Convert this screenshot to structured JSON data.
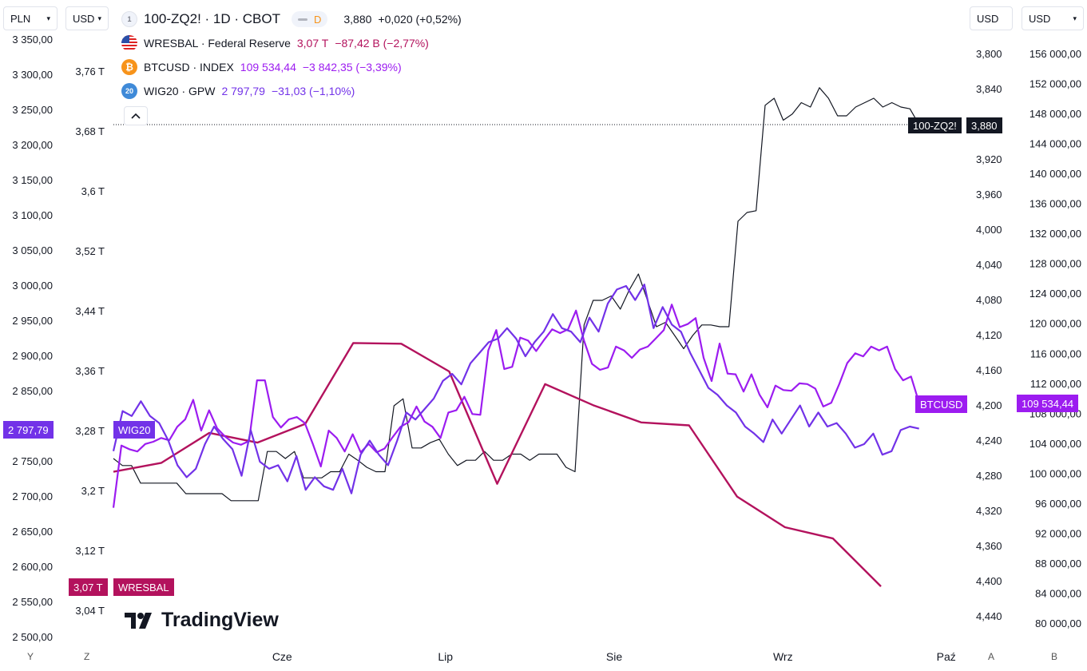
{
  "toolbar": {
    "currency_left": "PLN",
    "currency_right_of_left": "USD",
    "currency_axis_a": "USD",
    "currency_axis_b": "USD"
  },
  "header": {
    "compare_count": "1",
    "main_symbol": "100-ZQ2! · 1D · CBOT",
    "market_badge": "D",
    "main_price": "3,880",
    "main_change": "+0,020 (+0,52%)",
    "collapse_symbol": "^"
  },
  "legend": [
    {
      "id": "wresbal",
      "icon": "us-flag-icon",
      "symbol": "WRESBAL · Federal Reserve",
      "value": "3,07 T",
      "change": "−87,42 B (−2,77%)",
      "color": "#b3125d"
    },
    {
      "id": "btcusd",
      "icon": "bitcoin-icon",
      "symbol": "BTCUSD · INDEX",
      "value": "109 534,44",
      "change": "−3 842,35 (−3,39%)",
      "color": "#9c1cf0"
    },
    {
      "id": "wig20",
      "icon": "wig20-icon",
      "icon_text": "20",
      "symbol": "WIG20 · GPW",
      "value": "2 797,79",
      "change": "−31,03 (−1,10%)",
      "color": "#7232e8"
    }
  ],
  "tags": {
    "wig20_value": "2 797,79",
    "wig20_name": "WIG20",
    "wresbal_value": "3,07 T",
    "wresbal_name": "WRESBAL",
    "zq_name": "100-ZQ2!",
    "zq_value": "3,880",
    "btc_name": "BTCUSD",
    "btc_value": "109 534,44"
  },
  "watermark": "TradingView",
  "bottom": {
    "y_label": "Y",
    "z_label": "Z",
    "a_label": "A",
    "b_label": "B"
  },
  "colors": {
    "zq": "#131722",
    "wresbal": "#b3125d",
    "btcusd": "#9c1cf0",
    "wig20": "#7232e8"
  },
  "chart_data": {
    "type": "line",
    "x_ticks": [
      "Cze",
      "Lip",
      "Sie",
      "Wrz",
      "Paź"
    ],
    "axes": {
      "Y": {
        "ticks": [
          "3 350,00",
          "3 300,00",
          "3 250,00",
          "3 200,00",
          "3 150,00",
          "3 100,00",
          "3 050,00",
          "3 000,00",
          "2 950,00",
          "2 900,00",
          "2 850,00",
          "2 800,00",
          "2 750,00",
          "2 700,00",
          "2 650,00",
          "2 600,00",
          "2 550,00",
          "2 500,00"
        ],
        "range": [
          2500,
          3350
        ],
        "series": "WIG20"
      },
      "Z": {
        "ticks": [
          "3,76 T",
          "3,68 T",
          "3,6 T",
          "3,52 T",
          "3,44 T",
          "3,36 T",
          "3,28 T",
          "3,2 T",
          "3,12 T",
          "3,04 T"
        ],
        "range": [
          3.04,
          3.76
        ],
        "series": "WRESBAL"
      },
      "A": {
        "ticks": [
          "3,800",
          "3,840",
          "3,880",
          "3,920",
          "3,960",
          "4,000",
          "4,040",
          "4,080",
          "4,120",
          "4,160",
          "4,200",
          "4,240",
          "4,280",
          "4,320",
          "4,360",
          "4,400",
          "4,440"
        ],
        "range": [
          3.8,
          4.44
        ],
        "inverted": true,
        "series": "100-ZQ2!"
      },
      "B": {
        "ticks": [
          "156 000,00",
          "152 000,00",
          "148 000,00",
          "144 000,00",
          "140 000,00",
          "136 000,00",
          "132 000,00",
          "128 000,00",
          "124 000,00",
          "120 000,00",
          "116 000,00",
          "112 000,00",
          "108 000,00",
          "104 000,00",
          "100 000,00",
          "96 000,00",
          "92 000,00",
          "88 000,00",
          "84 000,00",
          "80 000,00"
        ],
        "range": [
          80000,
          156000
        ],
        "series": "BTCUSD"
      }
    },
    "series": [
      {
        "name": "100-ZQ2!",
        "axis": "A",
        "x_start": "2025-05-01",
        "x_end": "2025-09-26",
        "values": [
          4.26,
          4.268,
          4.268,
          4.288,
          4.288,
          4.288,
          4.288,
          4.288,
          4.3,
          4.3,
          4.3,
          4.3,
          4.3,
          4.308,
          4.308,
          4.308,
          4.308,
          4.252,
          4.252,
          4.26,
          4.252,
          4.282,
          4.282,
          4.282,
          4.275,
          4.275,
          4.255,
          4.262,
          4.27,
          4.275,
          4.275,
          4.2,
          4.192,
          4.248,
          4.248,
          4.242,
          4.238,
          4.255,
          4.268,
          4.262,
          4.262,
          4.252,
          4.262,
          4.262,
          4.255,
          4.255,
          4.262,
          4.255,
          4.255,
          4.255,
          4.27,
          4.275,
          4.108,
          4.08,
          4.08,
          4.075,
          4.09,
          4.068,
          4.05,
          4.08,
          4.11,
          4.105,
          4.12,
          4.135,
          4.12,
          4.108,
          4.108,
          4.11,
          4.11,
          3.99,
          3.98,
          3.978,
          3.858,
          3.85,
          3.875,
          3.868,
          3.855,
          3.86,
          3.838,
          3.85,
          3.87,
          3.87,
          3.86,
          3.855,
          3.85,
          3.86,
          3.855,
          3.86,
          3.862,
          3.88
        ]
      },
      {
        "name": "WRESBAL",
        "axis": "Z",
        "x_start": "2025-05-01",
        "x_end": "2025-09-19",
        "values": [
          3.226,
          3.238,
          3.278,
          3.265,
          3.29,
          3.398,
          3.397,
          3.36,
          3.21,
          3.343,
          3.315,
          3.292,
          3.288,
          3.193,
          3.152,
          3.137,
          3.073
        ]
      },
      {
        "name": "BTCUSD",
        "axis": "B",
        "x_start": "2025-05-01",
        "x_end": "2025-09-26",
        "values": [
          95500,
          103800,
          103300,
          103000,
          104000,
          104300,
          104800,
          104500,
          106300,
          107300,
          109900,
          105800,
          108500,
          106100,
          105000,
          104200,
          103900,
          104400,
          112500,
          112500,
          107600,
          106200,
          107300,
          107600,
          106800,
          104000,
          101000,
          105800,
          104800,
          103000,
          105300,
          102900,
          104000,
          102900,
          103400,
          104900,
          106300,
          106900,
          109000,
          107000,
          106300,
          104800,
          108200,
          108500,
          110300,
          108000,
          107900,
          116500,
          119200,
          114000,
          114300,
          118200,
          117800,
          116400,
          117900,
          119300,
          118800,
          119300,
          121800,
          117800,
          114700,
          113900,
          114200,
          117000,
          116500,
          115500,
          116600,
          117000,
          118100,
          119200,
          122600,
          119600,
          120000,
          120800,
          115500,
          112400,
          117400,
          113400,
          113300,
          111000,
          113300,
          110600,
          108900,
          111800,
          111200,
          111100,
          112100,
          112000,
          111400,
          109000,
          109500,
          112000,
          114800,
          116100,
          115700,
          117000,
          116500,
          117000,
          114000,
          112500,
          113000,
          109534
        ]
      },
      {
        "name": "WIG20",
        "axis": "Y",
        "x_start": "2025-05-01",
        "x_end": "2025-09-26",
        "values": [
          2765,
          2822,
          2815,
          2836,
          2815,
          2805,
          2780,
          2745,
          2728,
          2740,
          2775,
          2800,
          2782,
          2768,
          2730,
          2795,
          2750,
          2740,
          2745,
          2722,
          2758,
          2710,
          2728,
          2715,
          2710,
          2740,
          2705,
          2760,
          2780,
          2760,
          2745,
          2780,
          2820,
          2810,
          2825,
          2840,
          2865,
          2875,
          2860,
          2890,
          2905,
          2920,
          2925,
          2940,
          2925,
          2900,
          2920,
          2935,
          2960,
          2940,
          2935,
          2920,
          2955,
          2935,
          2975,
          2995,
          3000,
          2980,
          3002,
          2940,
          2970,
          2945,
          2935,
          2905,
          2880,
          2855,
          2845,
          2830,
          2820,
          2800,
          2790,
          2778,
          2810,
          2790,
          2810,
          2830,
          2800,
          2820,
          2800,
          2805,
          2790,
          2770,
          2775,
          2790,
          2760,
          2765,
          2795,
          2800,
          2797
        ]
      }
    ],
    "price_line_value": 3.88
  }
}
